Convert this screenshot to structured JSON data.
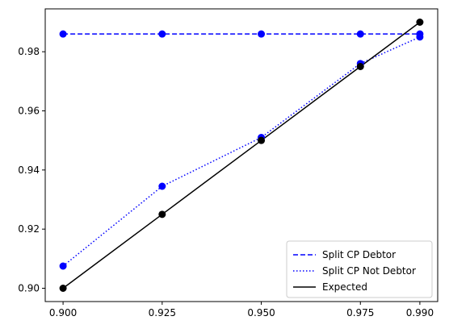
{
  "chart_data": {
    "type": "line",
    "x": [
      0.9,
      0.925,
      0.95,
      0.975,
      0.99
    ],
    "xticks": [
      "0.900",
      "0.925",
      "0.950",
      "0.975",
      "0.990"
    ],
    "yticks": [
      "0.90",
      "0.92",
      "0.94",
      "0.96",
      "0.98"
    ],
    "ytick_values": [
      0.9,
      0.92,
      0.94,
      0.96,
      0.98
    ],
    "xlim": [
      0.8955,
      0.9945
    ],
    "ylim": [
      0.8955,
      0.9945
    ],
    "grid": false,
    "legend_position": "lower-right",
    "series": [
      {
        "name": "Split CP Debtor",
        "values": [
          0.986,
          0.986,
          0.986,
          0.986,
          0.986
        ],
        "color": "#0000ff",
        "style": "dashed",
        "markers": [
          0.986,
          0.986,
          0.986,
          0.986,
          0.986
        ]
      },
      {
        "name": "Split CP Not Debtor",
        "values": [
          0.9075,
          0.9345,
          0.951,
          0.976,
          0.985
        ],
        "color": "#0000ff",
        "style": "dotted",
        "markers": [
          0.9075,
          0.9345,
          0.951,
          0.976,
          0.985
        ]
      },
      {
        "name": "Expected",
        "values": [
          0.9,
          0.925,
          0.95,
          0.975,
          0.99
        ],
        "color": "#000000",
        "style": "solid",
        "markers": [
          0.9,
          0.925,
          0.95,
          0.975,
          0.99
        ]
      }
    ]
  }
}
